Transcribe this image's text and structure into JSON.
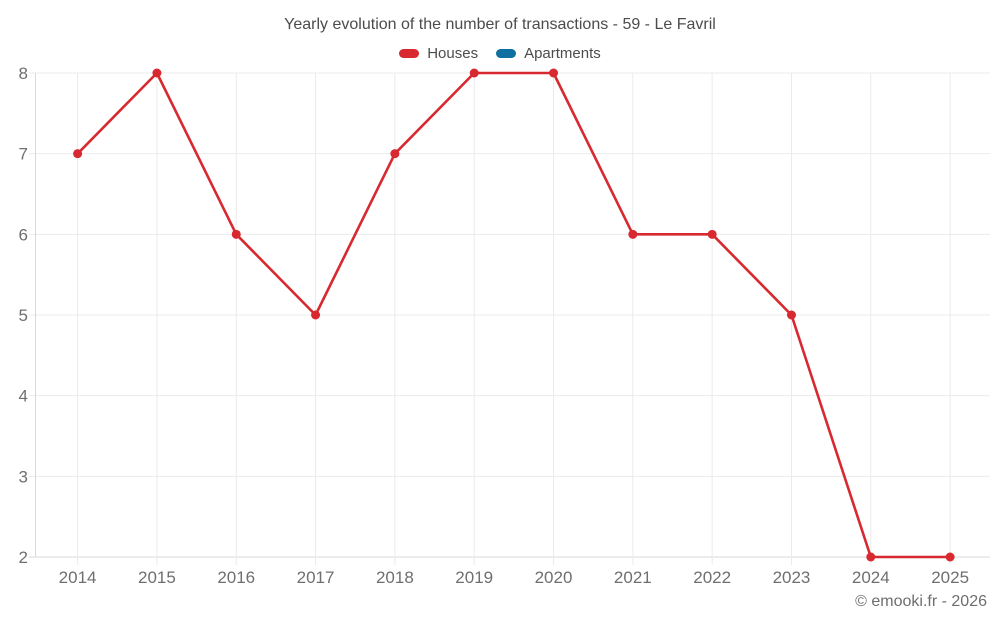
{
  "chart_data": {
    "type": "line",
    "title": "Yearly evolution of the number of transactions - 59 - Le Favril",
    "categories": [
      "2014",
      "2015",
      "2016",
      "2017",
      "2018",
      "2019",
      "2020",
      "2021",
      "2022",
      "2023",
      "2024",
      "2025"
    ],
    "series": [
      {
        "name": "Houses",
        "color": "#d7292f",
        "values": [
          7,
          8,
          6,
          5,
          7,
          8,
          8,
          6,
          6,
          5,
          2,
          2
        ]
      },
      {
        "name": "Apartments",
        "color": "#0f6fa0",
        "values": []
      }
    ],
    "xlabel": "",
    "ylabel": "",
    "ylim": [
      2,
      8
    ],
    "yticks": [
      2,
      3,
      4,
      5,
      6,
      7,
      8
    ],
    "grid": true,
    "legend_position": "top"
  },
  "footer": {
    "text": "© emooki.fr - 2026"
  }
}
